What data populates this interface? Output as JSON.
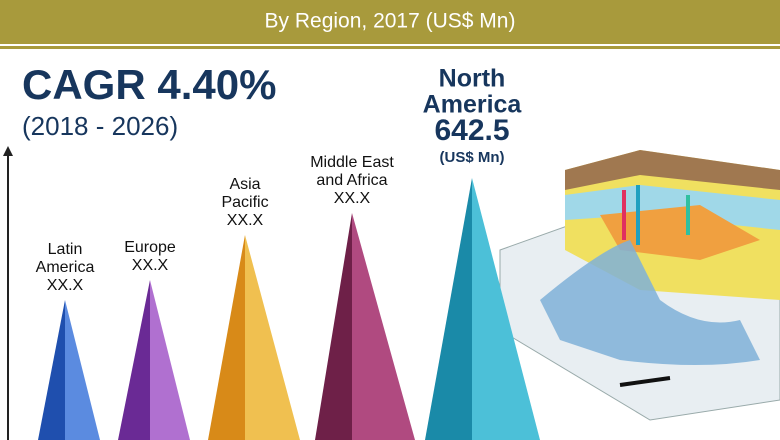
{
  "header": {
    "subtitle": "By Region, 2017 (US$ Mn)"
  },
  "cagr": {
    "label": "CAGR 4.40%",
    "period": "(2018 - 2026)"
  },
  "regions": [
    {
      "name": [
        "Latin",
        "America"
      ],
      "value": "XX.X"
    },
    {
      "name": [
        "Europe"
      ],
      "value": "XX.X"
    },
    {
      "name": [
        "Asia",
        "Pacific"
      ],
      "value": "XX.X"
    },
    {
      "name": [
        "Middle East",
        "and Africa"
      ],
      "value": "XX.X"
    },
    {
      "name": [
        "North",
        "America"
      ],
      "value": 642.5,
      "unit": "(US$ Mn)"
    }
  ]
}
